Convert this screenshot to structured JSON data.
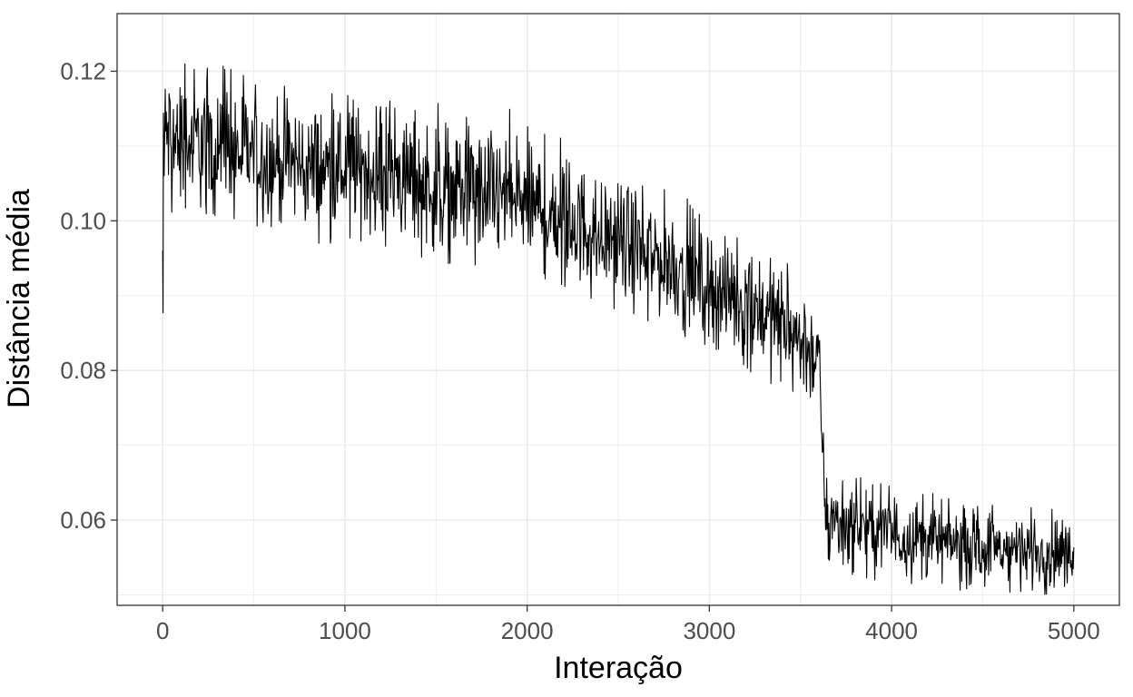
{
  "chart_data": {
    "type": "line",
    "title": "",
    "xlabel": "Interação",
    "ylabel": "Distância média",
    "xlim": [
      -250,
      5250
    ],
    "ylim": [
      0.0486,
      0.1277
    ],
    "x_ticks": [
      0,
      1000,
      2000,
      3000,
      4000,
      5000
    ],
    "x_tick_labels": [
      "0",
      "1000",
      "2000",
      "3000",
      "4000",
      "5000"
    ],
    "y_ticks": [
      0.06,
      0.08,
      0.1,
      0.12
    ],
    "y_tick_labels": [
      "0.06",
      "0.08",
      "0.10",
      "0.12"
    ],
    "grid": true,
    "legend": "none",
    "colors": {
      "line": "#000000",
      "grid": "#ebebeb",
      "panel_border": "#333333",
      "tick_text": "#4d4d4d"
    },
    "series": [
      {
        "x": [
          0,
          5,
          10,
          25,
          50,
          100,
          150,
          200,
          300,
          400,
          500,
          600,
          700,
          800,
          900,
          1000,
          1100,
          1200,
          1300,
          1400,
          1500,
          1600,
          1700,
          1800,
          1900,
          2000,
          2100,
          2200,
          2300,
          2400,
          2500,
          2600,
          2700,
          2800,
          2900,
          3000,
          3100,
          3200,
          3300,
          3400,
          3500,
          3550,
          3600,
          3615,
          3625,
          3640,
          3700,
          3800,
          3900,
          4000,
          4100,
          4200,
          4300,
          4400,
          4500,
          4600,
          4700,
          4800,
          4900,
          5000
        ],
        "y_mean": [
          0.11,
          0.096,
          0.111,
          0.112,
          0.111,
          0.11,
          0.11,
          0.11,
          0.109,
          0.109,
          0.109,
          0.108,
          0.108,
          0.107,
          0.107,
          0.107,
          0.107,
          0.106,
          0.106,
          0.105,
          0.104,
          0.104,
          0.104,
          0.103,
          0.103,
          0.102,
          0.101,
          0.1,
          0.099,
          0.098,
          0.097,
          0.096,
          0.095,
          0.094,
          0.093,
          0.091,
          0.09,
          0.089,
          0.088,
          0.086,
          0.084,
          0.083,
          0.081,
          0.075,
          0.066,
          0.061,
          0.06,
          0.059,
          0.0585,
          0.058,
          0.0578,
          0.0575,
          0.057,
          0.0568,
          0.0565,
          0.0562,
          0.056,
          0.0558,
          0.0557,
          0.0555
        ],
        "y_min_envelope": [
          0.0877,
          0.0877,
          0.101,
          0.101,
          0.101,
          0.101,
          0.101,
          0.1,
          0.1,
          0.1,
          0.099,
          0.098,
          0.098,
          0.097,
          0.097,
          0.097,
          0.097,
          0.096,
          0.096,
          0.095,
          0.094,
          0.094,
          0.094,
          0.093,
          0.093,
          0.093,
          0.092,
          0.091,
          0.09,
          0.089,
          0.088,
          0.087,
          0.086,
          0.085,
          0.084,
          0.082,
          0.081,
          0.08,
          0.079,
          0.077,
          0.075,
          0.074,
          0.072,
          0.066,
          0.058,
          0.055,
          0.053,
          0.052,
          0.052,
          0.052,
          0.051,
          0.051,
          0.051,
          0.05,
          0.05,
          0.05,
          0.05,
          0.05,
          0.05,
          0.052
        ],
        "y_max_envelope": [
          0.1144,
          0.1144,
          0.1215,
          0.1215,
          0.121,
          0.121,
          0.122,
          0.124,
          0.121,
          0.12,
          0.119,
          0.118,
          0.118,
          0.117,
          0.117,
          0.117,
          0.117,
          0.116,
          0.116,
          0.115,
          0.117,
          0.114,
          0.114,
          0.114,
          0.115,
          0.113,
          0.112,
          0.111,
          0.109,
          0.108,
          0.107,
          0.106,
          0.105,
          0.104,
          0.103,
          0.1,
          0.099,
          0.098,
          0.097,
          0.095,
          0.093,
          0.092,
          0.088,
          0.083,
          0.074,
          0.067,
          0.065,
          0.066,
          0.065,
          0.065,
          0.064,
          0.064,
          0.063,
          0.062,
          0.062,
          0.062,
          0.062,
          0.062,
          0.062,
          0.06
        ]
      }
    ]
  }
}
